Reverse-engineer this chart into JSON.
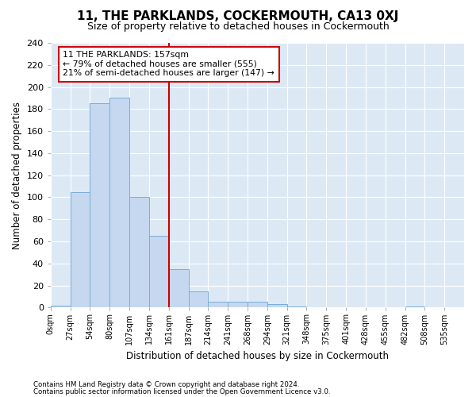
{
  "title": "11, THE PARKLANDS, COCKERMOUTH, CA13 0XJ",
  "subtitle": "Size of property relative to detached houses in Cockermouth",
  "xlabel": "Distribution of detached houses by size in Cockermouth",
  "ylabel": "Number of detached properties",
  "footer1": "Contains HM Land Registry data © Crown copyright and database right 2024.",
  "footer2": "Contains public sector information licensed under the Open Government Licence v3.0.",
  "bin_labels": [
    "0sqm",
    "27sqm",
    "54sqm",
    "80sqm",
    "107sqm",
    "134sqm",
    "161sqm",
    "187sqm",
    "214sqm",
    "241sqm",
    "268sqm",
    "294sqm",
    "321sqm",
    "348sqm",
    "375sqm",
    "401sqm",
    "428sqm",
    "455sqm",
    "482sqm",
    "508sqm",
    "535sqm"
  ],
  "bar_values": [
    2,
    105,
    185,
    190,
    100,
    65,
    35,
    15,
    5,
    5,
    5,
    3,
    1,
    0,
    0,
    0,
    0,
    0,
    1,
    0,
    0
  ],
  "bar_color": "#c5d8f0",
  "bar_edge_color": "#7aadd4",
  "ylim": [
    0,
    240
  ],
  "yticks": [
    0,
    20,
    40,
    60,
    80,
    100,
    120,
    140,
    160,
    180,
    200,
    220,
    240
  ],
  "property_label": "11 THE PARKLANDS: 157sqm",
  "annotation_line1": "← 79% of detached houses are smaller (555)",
  "annotation_line2": "21% of semi-detached houses are larger (147) →",
  "vline_bin_index": 6,
  "vline_color": "#cc0000",
  "annotation_box_color": "#cc0000",
  "fig_bg_color": "#ffffff",
  "ax_bg_color": "#dce9f5",
  "grid_color": "#ffffff"
}
